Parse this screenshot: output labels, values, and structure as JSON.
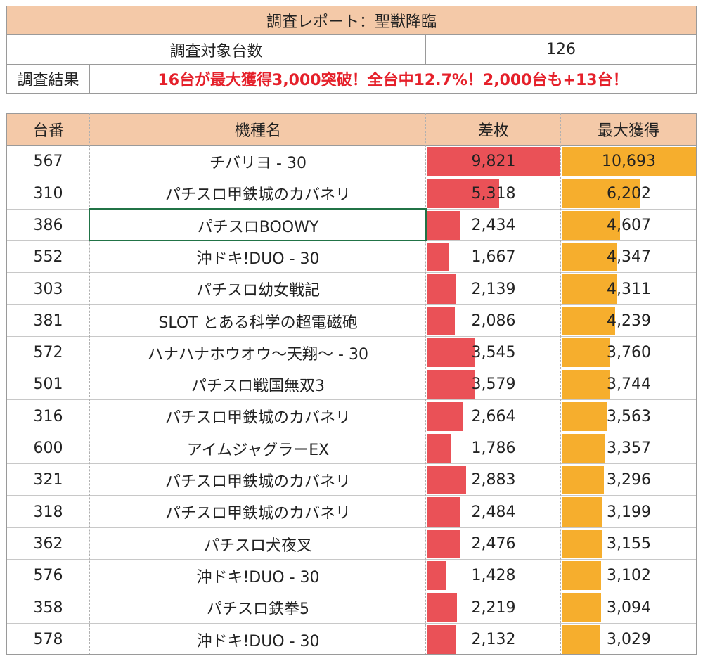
{
  "summary": {
    "title": "調査レポート：聖獣降臨",
    "target_label": "調査対象台数",
    "target_value": "126",
    "result_label": "調査結果",
    "result_text": "16台が最大獲得3,000突破！全台中12.7%！2,000台も+13台！"
  },
  "table": {
    "headers": [
      "台番",
      "機種名",
      "差枚",
      "最大獲得"
    ],
    "bar_colors": {
      "diff": "#ea5157",
      "max": "#f6ae2d"
    },
    "header_color": "#f4c9a8",
    "rows": [
      {
        "no": "567",
        "model": "チバリヨ - 30",
        "diff": 9821,
        "diff_text": "9,821",
        "max": 10693,
        "max_text": "10,693"
      },
      {
        "no": "310",
        "model": "パチスロ甲鉄城のカバネリ",
        "diff": 5318,
        "diff_text": "5,318",
        "max": 6202,
        "max_text": "6,202"
      },
      {
        "no": "386",
        "model": "パチスロBOOWY",
        "diff": 2434,
        "diff_text": "2,434",
        "max": 4607,
        "max_text": "4,607"
      },
      {
        "no": "552",
        "model": "沖ドキ!DUO - 30",
        "diff": 1667,
        "diff_text": "1,667",
        "max": 4347,
        "max_text": "4,347"
      },
      {
        "no": "303",
        "model": "パチスロ幼女戦記",
        "diff": 2139,
        "diff_text": "2,139",
        "max": 4311,
        "max_text": "4,311"
      },
      {
        "no": "381",
        "model": "SLOT とある科学の超電磁砲",
        "diff": 2086,
        "diff_text": "2,086",
        "max": 4239,
        "max_text": "4,239"
      },
      {
        "no": "572",
        "model": "ハナハナホウオウ～天翔～ - 30",
        "diff": 3545,
        "diff_text": "3,545",
        "max": 3760,
        "max_text": "3,760"
      },
      {
        "no": "501",
        "model": "パチスロ戦国無双3",
        "diff": 3579,
        "diff_text": "3,579",
        "max": 3744,
        "max_text": "3,744"
      },
      {
        "no": "316",
        "model": "パチスロ甲鉄城のカバネリ",
        "diff": 2664,
        "diff_text": "2,664",
        "max": 3563,
        "max_text": "3,563"
      },
      {
        "no": "600",
        "model": "アイムジャグラーEX",
        "diff": 1786,
        "diff_text": "1,786",
        "max": 3357,
        "max_text": "3,357"
      },
      {
        "no": "321",
        "model": "パチスロ甲鉄城のカバネリ",
        "diff": 2883,
        "diff_text": "2,883",
        "max": 3296,
        "max_text": "3,296"
      },
      {
        "no": "318",
        "model": "パチスロ甲鉄城のカバネリ",
        "diff": 2484,
        "diff_text": "2,484",
        "max": 3199,
        "max_text": "3,199"
      },
      {
        "no": "362",
        "model": "パチスロ犬夜叉",
        "diff": 2476,
        "diff_text": "2,476",
        "max": 3155,
        "max_text": "3,155"
      },
      {
        "no": "576",
        "model": "沖ドキ!DUO - 30",
        "diff": 1428,
        "diff_text": "1,428",
        "max": 3102,
        "max_text": "3,102"
      },
      {
        "no": "358",
        "model": "パチスロ鉄拳5",
        "diff": 2219,
        "diff_text": "2,219",
        "max": 3094,
        "max_text": "3,094"
      },
      {
        "no": "578",
        "model": "沖ドキ!DUO - 30",
        "diff": 2132,
        "diff_text": "2,132",
        "max": 3029,
        "max_text": "3,029"
      }
    ]
  }
}
